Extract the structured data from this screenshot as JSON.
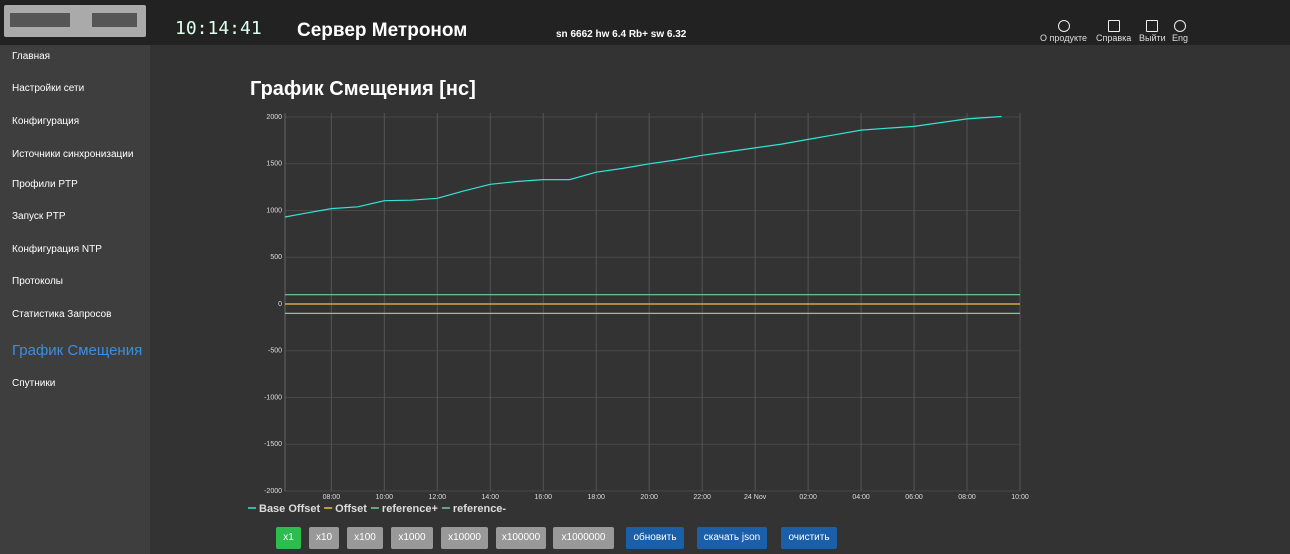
{
  "header": {
    "clock": "10:14:41",
    "title": "Сервер Метроном",
    "serial": "sn 6662 hw 6.4 Rb+ sw 6.32",
    "menu": [
      "О продукте",
      "Справка",
      "Выйти",
      "Eng"
    ]
  },
  "sidebar": [
    "Главная",
    "Настройки сети",
    "Конфигурация",
    "Источники синхронизации",
    "Профили PTP",
    "Запуск PTP",
    "Конфигурация NTP",
    "Протоколы",
    "Статистика Запросов",
    "График Смещения",
    "Спутники"
  ],
  "page_title": "График Смещения [нс]",
  "chart_data": {
    "type": "line",
    "xlim": [
      6.25,
      34
    ],
    "ylim": [
      -2000,
      2000
    ],
    "xticks": [
      {
        "value": 8,
        "label": "08:00"
      },
      {
        "value": 10,
        "label": "10:00"
      },
      {
        "value": 12,
        "label": "12:00"
      },
      {
        "value": 14,
        "label": "14:00"
      },
      {
        "value": 16,
        "label": "16:00"
      },
      {
        "value": 18,
        "label": "18:00"
      },
      {
        "value": 20,
        "label": "20:00"
      },
      {
        "value": 22,
        "label": "22:00"
      },
      {
        "value": 24,
        "label": "24 Nov"
      },
      {
        "value": 26,
        "label": "02:00"
      },
      {
        "value": 28,
        "label": "04:00"
      },
      {
        "value": 30,
        "label": "06:00"
      },
      {
        "value": 32,
        "label": "08:00"
      },
      {
        "value": 34,
        "label": "10:00"
      }
    ],
    "yticks": [
      2000,
      1500,
      1000,
      500,
      0,
      -500,
      -1000,
      -1500,
      -2000
    ],
    "grid": true,
    "series": [
      {
        "name": "Base Offset",
        "color": "#2ee6d6",
        "x": [
          6.25,
          7,
          8,
          9,
          10,
          11,
          12,
          13,
          14,
          15,
          16,
          17,
          18,
          19,
          20,
          21,
          22,
          23,
          24,
          25,
          26,
          27,
          28,
          29,
          30,
          31,
          32,
          33.3
        ],
        "values": [
          930,
          970,
          1020,
          1040,
          1105,
          1110,
          1130,
          1210,
          1280,
          1310,
          1330,
          1330,
          1410,
          1450,
          1500,
          1540,
          1590,
          1630,
          1670,
          1710,
          1760,
          1810,
          1860,
          1880,
          1900,
          1940,
          1980,
          2005
        ]
      },
      {
        "name": "Offset",
        "color": "#f0c040",
        "x": [
          6.25,
          34
        ],
        "values": [
          0,
          0
        ]
      },
      {
        "name": "reference+",
        "color": "#6fd0a0",
        "x": [
          6.25,
          34
        ],
        "values": [
          100,
          100
        ]
      },
      {
        "name": "reference-",
        "color": "#6fd0a0",
        "x": [
          6.25,
          34
        ],
        "values": [
          -100,
          -100
        ]
      }
    ]
  },
  "buttons": [
    "x1",
    "x10",
    "x100",
    "x1000",
    "x10000",
    "x100000",
    "x1000000",
    "обновить",
    "скачать json",
    "очистить"
  ]
}
